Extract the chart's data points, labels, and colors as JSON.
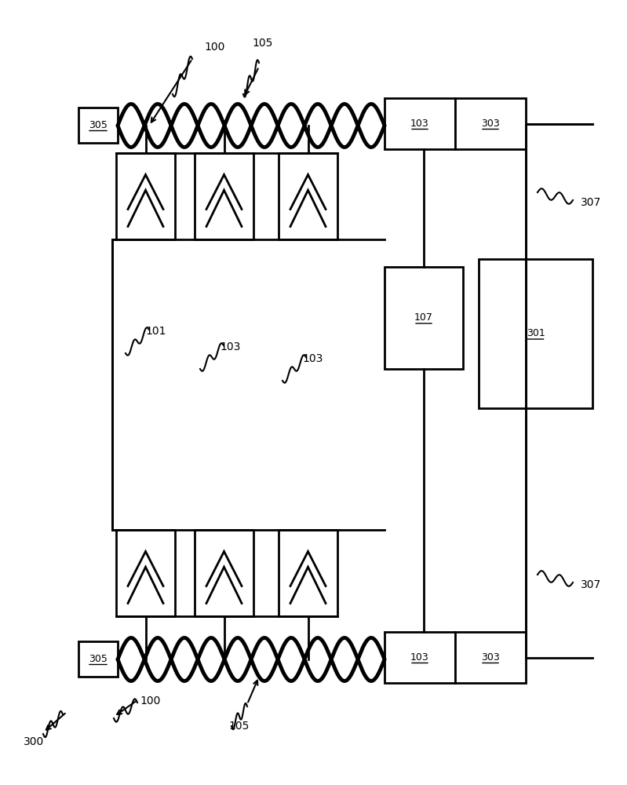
{
  "bg_color": "#ffffff",
  "line_color": "#000000",
  "lw": 2.0,
  "lw_thick": 3.5,
  "fig_width": 7.99,
  "fig_height": 10.0,
  "labels": {
    "100_top": "100",
    "105_top": "105",
    "305_top": "305",
    "103_top_left": "103",
    "303_top": "303",
    "107": "107",
    "301": "301",
    "307_top": "307",
    "307_bot": "307",
    "101": "101",
    "103_mid1": "103",
    "103_mid2": "103",
    "305_bot": "305",
    "103_bot_left": "103",
    "303_bot": "303",
    "100_bot": "100",
    "105_bot": "105",
    "300": "300"
  }
}
